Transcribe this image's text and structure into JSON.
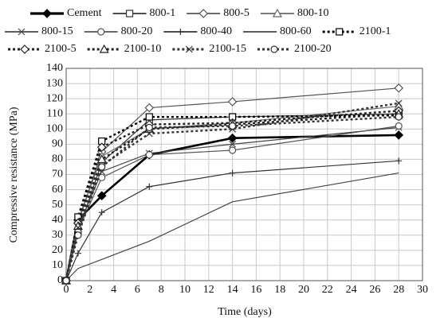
{
  "chart_data": {
    "type": "line",
    "x_label": "Time (days)",
    "y_label": "Compressive resistance (MPa)",
    "x": [
      0,
      1,
      3,
      7,
      14,
      28
    ],
    "xlim": [
      0,
      30
    ],
    "xticks": [
      0,
      2,
      4,
      6,
      8,
      10,
      12,
      14,
      16,
      18,
      20,
      22,
      24,
      26,
      28,
      30
    ],
    "ylim": [
      0,
      140
    ],
    "yticks": [
      0,
      10,
      20,
      30,
      40,
      50,
      60,
      70,
      80,
      90,
      100,
      110,
      120,
      130,
      140
    ],
    "grid": true,
    "series": [
      {
        "name": "Cement",
        "color": "#000000",
        "style": "thick",
        "marker": "diamond-filled",
        "values": [
          0,
          40,
          56,
          83,
          94,
          96
        ]
      },
      {
        "name": "800-1",
        "color": "#333333",
        "style": "solid",
        "marker": "square",
        "values": [
          0,
          32,
          78,
          106,
          108,
          110
        ]
      },
      {
        "name": "800-5",
        "color": "#555555",
        "style": "solid",
        "marker": "diamond",
        "values": [
          0,
          38,
          85,
          114,
          118,
          127
        ]
      },
      {
        "name": "800-10",
        "color": "#666666",
        "style": "solid",
        "marker": "triangle",
        "values": [
          0,
          40,
          82,
          100,
          104,
          115
        ]
      },
      {
        "name": "800-15",
        "color": "#444444",
        "style": "solid",
        "marker": "x",
        "values": [
          0,
          35,
          72,
          84,
          90,
          101
        ]
      },
      {
        "name": "800-20",
        "color": "#555555",
        "style": "solid",
        "marker": "circle",
        "values": [
          0,
          33,
          68,
          83,
          86,
          102
        ]
      },
      {
        "name": "800-40",
        "color": "#333333",
        "style": "solid",
        "marker": "plus",
        "values": [
          0,
          18,
          45,
          62,
          71,
          79
        ]
      },
      {
        "name": "800-60",
        "color": "#444444",
        "style": "solid",
        "marker": "none",
        "values": [
          0,
          8,
          14,
          26,
          52,
          71
        ]
      },
      {
        "name": "2100-1",
        "color": "#000000",
        "style": "dotted",
        "marker": "square",
        "values": [
          0,
          42,
          92,
          108,
          108,
          109
        ]
      },
      {
        "name": "2100-5",
        "color": "#222222",
        "style": "dotted",
        "marker": "diamond",
        "values": [
          0,
          38,
          88,
          103,
          104,
          112
        ]
      },
      {
        "name": "2100-10",
        "color": "#222222",
        "style": "dotted",
        "marker": "triangle",
        "values": [
          0,
          36,
          80,
          100,
          103,
          110
        ]
      },
      {
        "name": "2100-15",
        "color": "#333333",
        "style": "dotted",
        "marker": "x",
        "values": [
          0,
          35,
          76,
          97,
          100,
          117
        ]
      },
      {
        "name": "2100-20",
        "color": "#333333",
        "style": "dotted",
        "marker": "circle",
        "values": [
          0,
          30,
          75,
          101,
          102,
          108
        ]
      }
    ]
  }
}
